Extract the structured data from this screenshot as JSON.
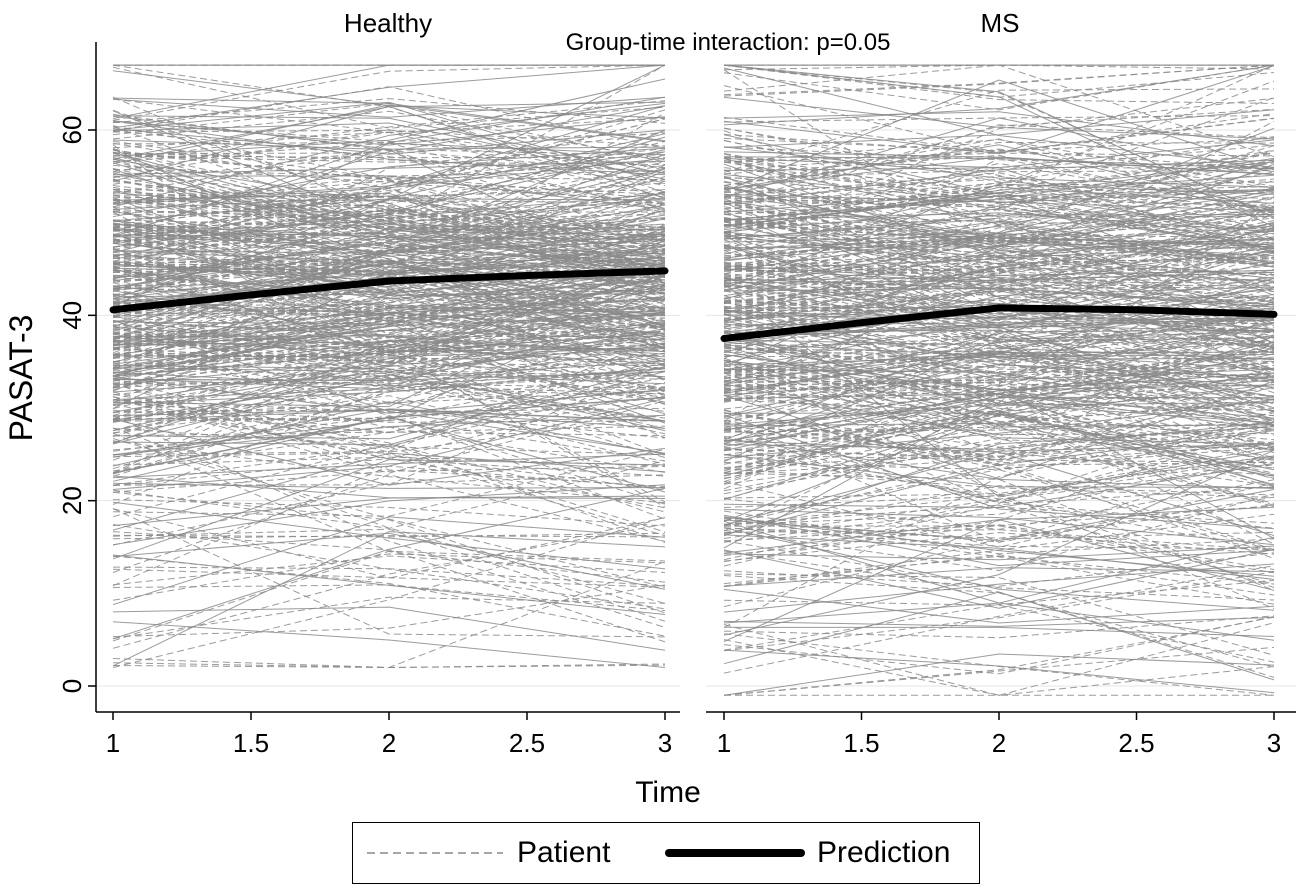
{
  "chart_data": {
    "type": "line",
    "title": "Group-time interaction: p=0.05",
    "ylabel": "PASAT-3",
    "xlabel": "Time",
    "ylim": [
      0,
      68
    ],
    "xlim": [
      1,
      3
    ],
    "xticks": [
      "1",
      "1.5",
      "2",
      "2.5",
      "3"
    ],
    "xtick_values": [
      1,
      1.5,
      2,
      2.5,
      3
    ],
    "yticks": [
      "0",
      "20",
      "40",
      "60"
    ],
    "ytick_values": [
      0,
      20,
      40,
      60
    ],
    "grid": true,
    "legend_position": "bottom",
    "legend": [
      {
        "name": "Patient",
        "style": "dashed-gray"
      },
      {
        "name": "Prediction",
        "style": "thick-black"
      }
    ],
    "panels": [
      {
        "name": "Healthy",
        "prediction": {
          "x": [
            1,
            1.5,
            2,
            2.5,
            3
          ],
          "y": [
            40.6,
            42.2,
            43.7,
            44.3,
            44.8
          ]
        },
        "patient_range": [
          2,
          67
        ],
        "patient_center": 43,
        "patient_spread": 10
      },
      {
        "name": "MS",
        "prediction": {
          "x": [
            1,
            1.5,
            2,
            2.5,
            3
          ],
          "y": [
            37.5,
            39.2,
            40.8,
            40.6,
            40.1
          ]
        },
        "patient_range": [
          -1,
          67
        ],
        "patient_center": 39,
        "patient_spread": 13
      }
    ],
    "colors": {
      "patient": "#8a8a8a",
      "prediction": "#000000",
      "grid": "#e6e6e6"
    }
  }
}
